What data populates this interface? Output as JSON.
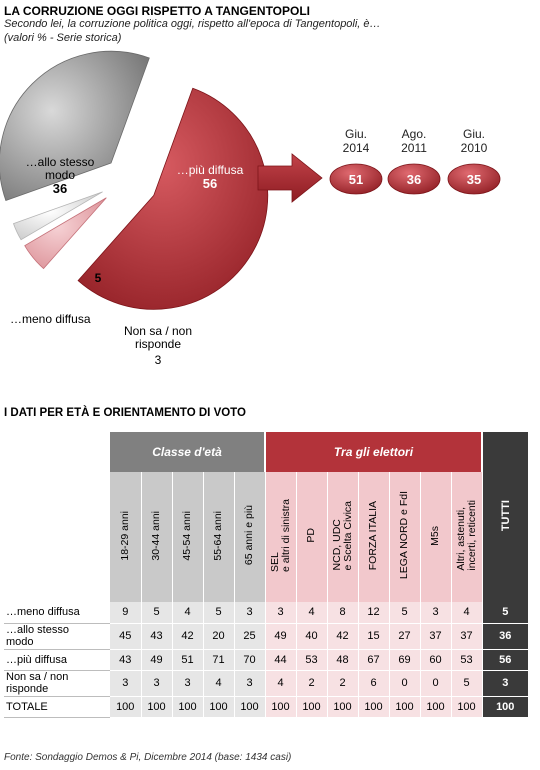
{
  "header": {
    "title": "LA CORRUZIONE OGGI RISPETTO A TANGENTOPOLI",
    "subtitle": "Secondo lei, la corruzione politica oggi, rispetto all'epoca di Tangentopoli, è…",
    "note": "(valori % - Serie storica)"
  },
  "colors": {
    "gray": "#8c8c8c",
    "red": "#a8282e",
    "pink": "#e8a2a8",
    "light": "#dcdcdc",
    "red_header": "#b3333a",
    "gray_header": "#808080",
    "dark": "#3a3a3a"
  },
  "chart_data": [
    {
      "type": "pie",
      "slices": [
        {
          "label": "…allo stesso modo",
          "value": 36,
          "label_lines": [
            "…allo stesso",
            "modo"
          ],
          "value_text": "36"
        },
        {
          "label": "…più diffusa",
          "value": 56,
          "label_lines": [
            "…più diffusa"
          ],
          "value_text": "56"
        },
        {
          "label": "…meno diffusa",
          "value": 5,
          "label_lines": [
            "…meno diffusa"
          ],
          "value_text": "5"
        },
        {
          "label": "Non sa / non risponde",
          "value": 3,
          "label_lines": [
            "Non sa / non",
            "risponde"
          ],
          "value_text": "3"
        }
      ],
      "historical": [
        {
          "month": "Giu.",
          "year": "2014",
          "value": 51
        },
        {
          "month": "Ago.",
          "year": "2011",
          "value": 36
        },
        {
          "month": "Giu.",
          "year": "2010",
          "value": 35
        }
      ]
    },
    {
      "type": "table",
      "title": "I DATI PER ETÀ E ORIENTAMENTO DI VOTO",
      "group_age": "Classe d'età",
      "group_voters": "Tra gli elettori",
      "total_label": "TUTTI",
      "columns": [
        "18-29 anni",
        "30-44 anni",
        "45-54 anni",
        "55-64 anni",
        "65 anni e più",
        "SEL\ne altri di sinistra",
        "PD",
        "NCD, UDC\ne Scelta Civica",
        "FORZA ITALIA",
        "LEGA NORD e FdI",
        "M5s",
        "Altri, astenuti,\nincerti, reticenti"
      ],
      "rows": [
        {
          "label": "…meno diffusa",
          "values": [
            9,
            5,
            4,
            5,
            3,
            3,
            4,
            8,
            12,
            5,
            3,
            4
          ],
          "total": 5
        },
        {
          "label": "…allo stesso\nmodo",
          "values": [
            45,
            43,
            42,
            20,
            25,
            49,
            40,
            42,
            15,
            27,
            37,
            37
          ],
          "total": 36
        },
        {
          "label": "…più diffusa",
          "values": [
            43,
            49,
            51,
            71,
            70,
            44,
            53,
            48,
            67,
            69,
            60,
            53
          ],
          "total": 56
        },
        {
          "label": "Non sa / non\nrisponde",
          "values": [
            3,
            3,
            3,
            4,
            3,
            4,
            2,
            2,
            6,
            0,
            0,
            5
          ],
          "total": 3
        },
        {
          "label": "TOTALE",
          "values": [
            100,
            100,
            100,
            100,
            100,
            100,
            100,
            100,
            100,
            100,
            100,
            100
          ],
          "total": 100
        }
      ]
    }
  ],
  "footer": {
    "source": "Fonte: Sondaggio Demos & Pi, Dicembre 2014 (base: 1434 casi)"
  }
}
